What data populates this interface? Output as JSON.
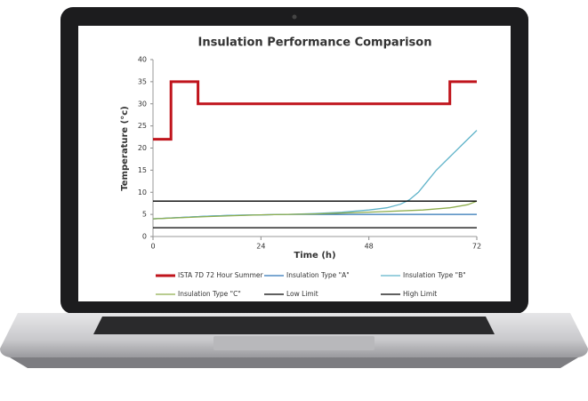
{
  "chart_data": {
    "type": "line",
    "title": "Insulation Performance Comparison",
    "x_label": "Time (h)",
    "y_label": "Temperature (°c)",
    "xlim": [
      0,
      72
    ],
    "xticks": [
      0,
      24,
      48,
      72
    ],
    "ylim": [
      0,
      40
    ],
    "yticks": [
      0,
      5,
      10,
      15,
      20,
      25,
      30,
      35,
      40
    ],
    "grid": false,
    "legend": "bottom",
    "series": [
      {
        "name": "ISTA 7D 72 Hour Summer",
        "color": "#c0141c",
        "width": 3,
        "x": [
          0,
          4,
          4,
          10,
          10,
          66,
          66,
          72
        ],
        "values": [
          22,
          22,
          35,
          35,
          30,
          30,
          35,
          35
        ]
      },
      {
        "name": "Insulation Type \"A\"",
        "color": "#2e75b6",
        "width": 1.3,
        "x": [
          0,
          6,
          12,
          18,
          24,
          30,
          36,
          42,
          48,
          54,
          60,
          66,
          72
        ],
        "values": [
          4,
          4.3,
          4.6,
          4.8,
          4.9,
          5,
          5,
          5,
          5,
          5,
          5,
          5,
          5
        ]
      },
      {
        "name": "Insulation Type \"B\"",
        "color": "#5fb3c9",
        "width": 1.3,
        "x": [
          0,
          6,
          12,
          18,
          24,
          30,
          36,
          42,
          48,
          52,
          55,
          57,
          59,
          61,
          63,
          66,
          69,
          72
        ],
        "values": [
          4,
          4.3,
          4.6,
          4.8,
          4.9,
          5,
          5.2,
          5.5,
          6,
          6.5,
          7.3,
          8.3,
          10,
          12.5,
          15,
          18,
          21,
          24
        ]
      },
      {
        "name": "Insulation Type \"C\"",
        "color": "#8fae4e",
        "width": 1.3,
        "x": [
          0,
          12,
          24,
          36,
          48,
          60,
          66,
          70,
          72
        ],
        "values": [
          4,
          4.5,
          4.9,
          5.1,
          5.5,
          6,
          6.5,
          7.2,
          8
        ]
      },
      {
        "name": "Low Limit",
        "color": "#000000",
        "width": 1.3,
        "x": [
          0,
          72
        ],
        "values": [
          2,
          2
        ]
      },
      {
        "name": "High Limit",
        "color": "#000000",
        "width": 1.3,
        "x": [
          0,
          72
        ],
        "values": [
          8,
          8
        ]
      }
    ]
  }
}
